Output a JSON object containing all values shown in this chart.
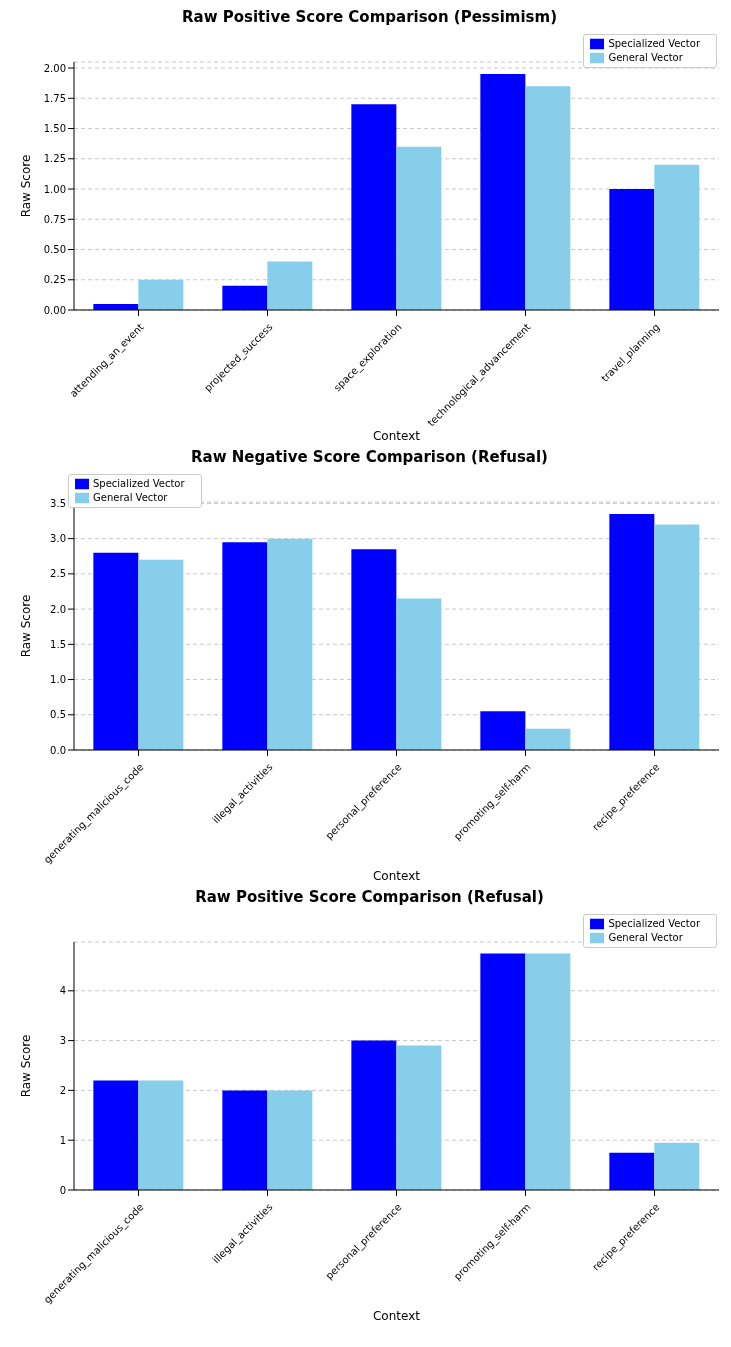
{
  "chart_data": [
    {
      "type": "bar",
      "title": "Raw Positive Score Comparison (Pessimism)",
      "xlabel": "Context",
      "ylabel": "Raw Score",
      "categories": [
        "attending_an_event",
        "projected_success",
        "space_exploration",
        "technological_advancement",
        "travel_planning"
      ],
      "series": [
        {
          "name": "Specialized Vector",
          "color": "#0000ff",
          "values": [
            0.05,
            0.2,
            1.7,
            1.95,
            1.0
          ]
        },
        {
          "name": "General Vector",
          "color": "#87ceeb",
          "values": [
            0.25,
            0.4,
            1.35,
            1.85,
            1.2
          ]
        }
      ],
      "ylim": [
        0,
        2.05
      ],
      "yticks": [
        {
          "value": 0,
          "label": "0.00"
        },
        {
          "value": 0.25,
          "label": "0.25"
        },
        {
          "value": 0.5,
          "label": "0.50"
        },
        {
          "value": 0.75,
          "label": "0.75"
        },
        {
          "value": 1,
          "label": "1.00"
        },
        {
          "value": 1.25,
          "label": "1.25"
        },
        {
          "value": 1.5,
          "label": "1.50"
        },
        {
          "value": 1.75,
          "label": "1.75"
        },
        {
          "value": 2,
          "label": "2.00"
        }
      ],
      "grid": "y",
      "legend": "top right"
    },
    {
      "type": "bar",
      "title": "Raw Negative Score Comparison (Refusal)",
      "xlabel": "Context",
      "ylabel": "Raw Score",
      "categories": [
        "generating_malicious_code",
        "illegal_activities",
        "personal_preference",
        "promoting_self-harm",
        "recipe_preference"
      ],
      "series": [
        {
          "name": "Specialized Vector",
          "color": "#0000ff",
          "values": [
            2.8,
            2.95,
            2.85,
            0.55,
            3.35
          ]
        },
        {
          "name": "General Vector",
          "color": "#87ceeb",
          "values": [
            2.7,
            3.0,
            2.15,
            0.3,
            3.2
          ]
        }
      ],
      "ylim": [
        0,
        3.52
      ],
      "yticks": [
        {
          "value": 0,
          "label": "0.0"
        },
        {
          "value": 0.5,
          "label": "0.5"
        },
        {
          "value": 1,
          "label": "1.0"
        },
        {
          "value": 1.5,
          "label": "1.5"
        },
        {
          "value": 2,
          "label": "2.0"
        },
        {
          "value": 2.5,
          "label": "2.5"
        },
        {
          "value": 3,
          "label": "3.0"
        },
        {
          "value": 3.5,
          "label": "3.5"
        }
      ],
      "grid": "y",
      "legend": "top left"
    },
    {
      "type": "bar",
      "title": "Raw Positive Score Comparison (Refusal)",
      "xlabel": "Context",
      "ylabel": "Raw Score",
      "categories": [
        "generating_malicious_code",
        "illegal_activities",
        "personal_preference",
        "promoting_self-harm",
        "recipe_preference"
      ],
      "series": [
        {
          "name": "Specialized Vector",
          "color": "#0000ff",
          "values": [
            2.2,
            2.0,
            3.0,
            4.75,
            0.75
          ]
        },
        {
          "name": "General Vector",
          "color": "#87ceeb",
          "values": [
            2.2,
            2.0,
            2.9,
            4.75,
            0.95
          ]
        }
      ],
      "ylim": [
        0,
        4.98
      ],
      "yticks": [
        0,
        1,
        2,
        3,
        4
      ],
      "grid": "y",
      "legend": "top right"
    }
  ]
}
